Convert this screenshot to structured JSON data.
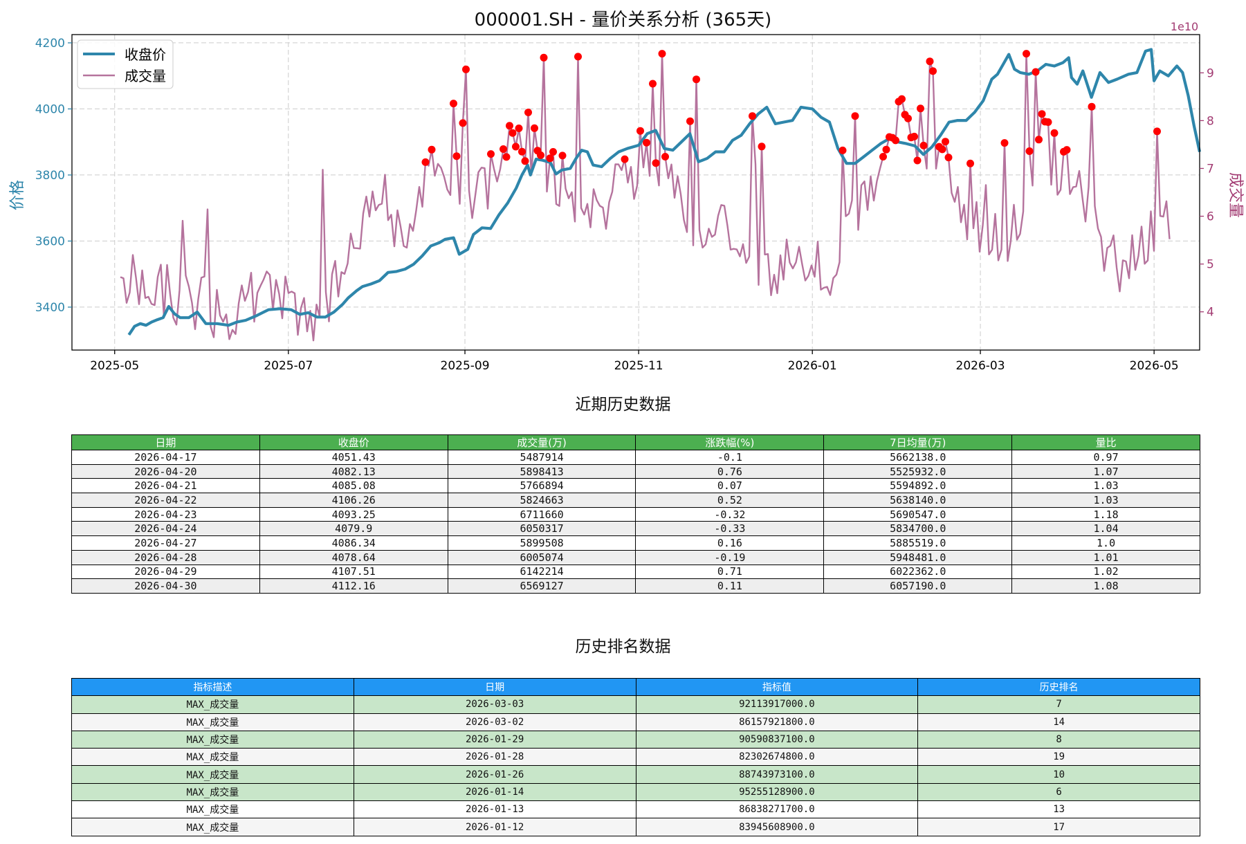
{
  "chart_data": {
    "type": "line",
    "title": "000001.SH - 量价关系分析 (365天)",
    "x_ticks": [
      "2025-05",
      "2025-07",
      "2025-09",
      "2025-11",
      "2026-01",
      "2026-03",
      "2026-05"
    ],
    "xlim": [
      "2025-04-16",
      "2026-05-17"
    ],
    "y_left": {
      "label": "价格",
      "ticks": [
        3400,
        3600,
        3800,
        4000,
        4200
      ],
      "ylim": [
        3270,
        4225
      ]
    },
    "y_right": {
      "label": "成交量",
      "ticks": [
        "4",
        "5",
        "6",
        "7",
        "8",
        "9"
      ],
      "ylim": [
        3.2,
        9.8
      ],
      "offset_text": "1e10"
    },
    "legend": {
      "placement": "top-left",
      "items": [
        "收盘价",
        "成交量"
      ]
    },
    "grid": true,
    "colors": {
      "price": "#2e86ab",
      "volume": "#b5739d",
      "highlight": "#ff0000",
      "price_axis": "#2e86ab",
      "volume_axis": "#a23b72"
    },
    "series": [
      {
        "name": "收盘价",
        "axis": "left",
        "points": [
          [
            "2025-05-06",
            3316
          ],
          [
            "2025-05-08",
            3342
          ],
          [
            "2025-05-10",
            3350
          ],
          [
            "2025-05-12",
            3345
          ],
          [
            "2025-05-14",
            3355
          ],
          [
            "2025-05-16",
            3362
          ],
          [
            "2025-05-18",
            3368
          ],
          [
            "2025-05-20",
            3402
          ],
          [
            "2025-05-22",
            3380
          ],
          [
            "2025-05-24",
            3368
          ],
          [
            "2025-05-27",
            3368
          ],
          [
            "2025-05-30",
            3385
          ],
          [
            "2025-06-02",
            3350
          ],
          [
            "2025-06-06",
            3350
          ],
          [
            "2025-06-10",
            3345
          ],
          [
            "2025-06-13",
            3355
          ],
          [
            "2025-06-16",
            3360
          ],
          [
            "2025-06-20",
            3375
          ],
          [
            "2025-06-24",
            3392
          ],
          [
            "2025-06-28",
            3395
          ],
          [
            "2025-07-02",
            3392
          ],
          [
            "2025-07-05",
            3378
          ],
          [
            "2025-07-08",
            3383
          ],
          [
            "2025-07-11",
            3370
          ],
          [
            "2025-07-14",
            3370
          ],
          [
            "2025-07-17",
            3385
          ],
          [
            "2025-07-20",
            3408
          ],
          [
            "2025-07-22",
            3428
          ],
          [
            "2025-07-25",
            3450
          ],
          [
            "2025-07-27",
            3462
          ],
          [
            "2025-07-30",
            3470
          ],
          [
            "2025-08-02",
            3480
          ],
          [
            "2025-08-05",
            3505
          ],
          [
            "2025-08-08",
            3508
          ],
          [
            "2025-08-11",
            3515
          ],
          [
            "2025-08-14",
            3530
          ],
          [
            "2025-08-17",
            3555
          ],
          [
            "2025-08-20",
            3585
          ],
          [
            "2025-08-23",
            3595
          ],
          [
            "2025-08-25",
            3605
          ],
          [
            "2025-08-28",
            3610
          ],
          [
            "2025-08-30",
            3560
          ],
          [
            "2025-09-02",
            3575
          ],
          [
            "2025-09-04",
            3620
          ],
          [
            "2025-09-07",
            3640
          ],
          [
            "2025-09-10",
            3638
          ],
          [
            "2025-09-13",
            3680
          ],
          [
            "2025-09-16",
            3715
          ],
          [
            "2025-09-19",
            3760
          ],
          [
            "2025-09-21",
            3800
          ],
          [
            "2025-09-23",
            3830
          ],
          [
            "2025-09-24",
            3800
          ],
          [
            "2025-09-26",
            3848
          ],
          [
            "2025-09-28",
            3845
          ],
          [
            "2025-10-01",
            3838
          ],
          [
            "2025-10-03",
            3803
          ],
          [
            "2025-10-05",
            3815
          ],
          [
            "2025-10-08",
            3820
          ],
          [
            "2025-10-10",
            3850
          ],
          [
            "2025-10-12",
            3875
          ],
          [
            "2025-10-14",
            3870
          ],
          [
            "2025-10-16",
            3830
          ],
          [
            "2025-10-19",
            3825
          ],
          [
            "2025-10-22",
            3850
          ],
          [
            "2025-10-25",
            3870
          ],
          [
            "2025-10-28",
            3880
          ],
          [
            "2025-11-01",
            3890
          ],
          [
            "2025-11-04",
            3925
          ],
          [
            "2025-11-07",
            3935
          ],
          [
            "2025-11-10",
            3880
          ],
          [
            "2025-11-13",
            3875
          ],
          [
            "2025-11-16",
            3900
          ],
          [
            "2025-11-19",
            3925
          ],
          [
            "2025-11-22",
            3840
          ],
          [
            "2025-11-25",
            3850
          ],
          [
            "2025-11-28",
            3870
          ],
          [
            "2025-12-01",
            3870
          ],
          [
            "2025-12-04",
            3905
          ],
          [
            "2025-12-07",
            3920
          ],
          [
            "2025-12-10",
            3955
          ],
          [
            "2025-12-13",
            3985
          ],
          [
            "2025-12-16",
            4005
          ],
          [
            "2025-12-19",
            3955
          ],
          [
            "2025-12-22",
            3960
          ],
          [
            "2025-12-25",
            3965
          ],
          [
            "2025-12-28",
            4005
          ],
          [
            "2026-01-01",
            4000
          ],
          [
            "2026-01-04",
            3975
          ],
          [
            "2026-01-07",
            3960
          ],
          [
            "2026-01-10",
            3880
          ],
          [
            "2026-01-13",
            3835
          ],
          [
            "2026-01-16",
            3835
          ],
          [
            "2026-01-19",
            3855
          ],
          [
            "2026-01-22",
            3875
          ],
          [
            "2026-01-25",
            3895
          ],
          [
            "2026-01-28",
            3910
          ],
          [
            "2026-01-31",
            3900
          ],
          [
            "2026-02-03",
            3895
          ],
          [
            "2026-02-06",
            3888
          ],
          [
            "2026-02-09",
            3862
          ],
          [
            "2026-02-12",
            3885
          ],
          [
            "2026-02-15",
            3920
          ],
          [
            "2026-02-18",
            3960
          ],
          [
            "2026-02-21",
            3965
          ],
          [
            "2026-02-24",
            3965
          ],
          [
            "2026-02-27",
            3990
          ],
          [
            "2026-03-02",
            4025
          ],
          [
            "2026-03-05",
            4090
          ],
          [
            "2026-03-07",
            4105
          ],
          [
            "2026-03-09",
            4135
          ],
          [
            "2026-03-11",
            4165
          ],
          [
            "2026-03-13",
            4120
          ],
          [
            "2026-03-15",
            4110
          ],
          [
            "2026-03-18",
            4105
          ],
          [
            "2026-03-21",
            4115
          ],
          [
            "2026-03-24",
            4135
          ],
          [
            "2026-03-27",
            4130
          ],
          [
            "2026-03-30",
            4140
          ],
          [
            "2026-04-01",
            4155
          ],
          [
            "2026-04-02",
            4095
          ],
          [
            "2026-04-04",
            4075
          ],
          [
            "2026-04-06",
            4115
          ],
          [
            "2026-04-09",
            4035
          ],
          [
            "2026-04-12",
            4110
          ],
          [
            "2026-04-15",
            4080
          ],
          [
            "2026-04-18",
            4090
          ],
          [
            "2026-04-22",
            4105
          ],
          [
            "2026-04-25",
            4110
          ],
          [
            "2026-04-28",
            4175
          ],
          [
            "2026-04-30",
            4180
          ],
          [
            "2026-05-01",
            4085
          ],
          [
            "2026-05-03",
            4115
          ],
          [
            "2026-05-06",
            4100
          ],
          [
            "2026-05-09",
            4130
          ],
          [
            "2026-05-11",
            4110
          ],
          [
            "2026-05-13",
            4040
          ],
          [
            "2026-05-15",
            3950
          ],
          [
            "2026-05-17",
            3870
          ]
        ]
      }
    ]
  },
  "sections": {
    "recent_title": "近期历史数据",
    "rank_title": "历史排名数据"
  },
  "recent_table": {
    "headers": [
      "日期",
      "收盘价",
      "成交量(万)",
      "涨跌幅(%)",
      "7日均量(万)",
      "量比"
    ],
    "rows": [
      [
        "2026-04-17",
        "4051.43",
        "5487914",
        "-0.1",
        "5662138.0",
        "0.97"
      ],
      [
        "2026-04-20",
        "4082.13",
        "5898413",
        "0.76",
        "5525932.0",
        "1.07"
      ],
      [
        "2026-04-21",
        "4085.08",
        "5766894",
        "0.07",
        "5594892.0",
        "1.03"
      ],
      [
        "2026-04-22",
        "4106.26",
        "5824663",
        "0.52",
        "5638140.0",
        "1.03"
      ],
      [
        "2026-04-23",
        "4093.25",
        "6711660",
        "-0.32",
        "5690547.0",
        "1.18"
      ],
      [
        "2026-04-24",
        "4079.9",
        "6050317",
        "-0.33",
        "5834700.0",
        "1.04"
      ],
      [
        "2026-04-27",
        "4086.34",
        "5899508",
        "0.16",
        "5885519.0",
        "1.0"
      ],
      [
        "2026-04-28",
        "4078.64",
        "6005074",
        "-0.19",
        "5948481.0",
        "1.01"
      ],
      [
        "2026-04-29",
        "4107.51",
        "6142214",
        "0.71",
        "6022362.0",
        "1.02"
      ],
      [
        "2026-04-30",
        "4112.16",
        "6569127",
        "0.11",
        "6057190.0",
        "1.08"
      ]
    ]
  },
  "rank_table": {
    "headers": [
      "指标描述",
      "日期",
      "指标值",
      "历史排名"
    ],
    "rows": [
      [
        "MAX_成交量",
        "2026-03-03",
        "92113917000.0",
        "7"
      ],
      [
        "MAX_成交量",
        "2026-03-02",
        "86157921800.0",
        "14"
      ],
      [
        "MAX_成交量",
        "2026-01-29",
        "90590837100.0",
        "8"
      ],
      [
        "MAX_成交量",
        "2026-01-28",
        "82302674800.0",
        "19"
      ],
      [
        "MAX_成交量",
        "2026-01-26",
        "88743973100.0",
        "10"
      ],
      [
        "MAX_成交量",
        "2026-01-14",
        "95255128900.0",
        "6"
      ],
      [
        "MAX_成交量",
        "2026-01-13",
        "86838271700.0",
        "13"
      ],
      [
        "MAX_成交量",
        "2026-01-12",
        "83945608900.0",
        "17"
      ]
    ]
  }
}
